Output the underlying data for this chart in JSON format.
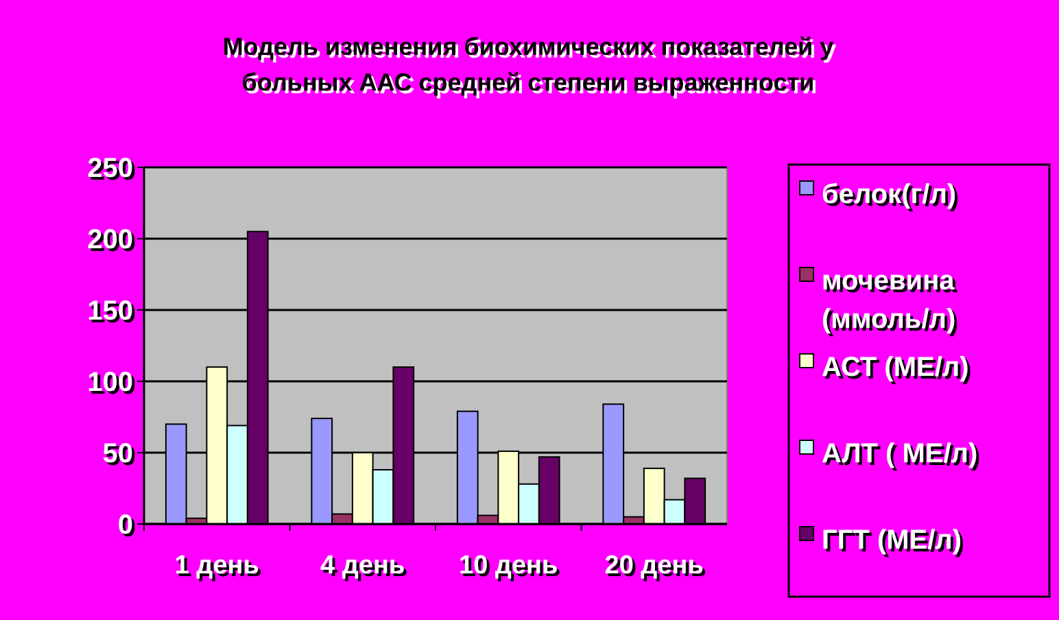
{
  "chart_data": {
    "type": "bar",
    "title": "Модель изменения биохимических показателей у больных ААС средней степени выраженности",
    "categories": [
      "1 день",
      "4 день",
      "10 день",
      "20 день"
    ],
    "series": [
      {
        "name": "белок(г/л)",
        "color": "#9999ff",
        "values": [
          70,
          74,
          79,
          84
        ]
      },
      {
        "name": "мочевина (ммоль/л)",
        "color": "#993366",
        "values": [
          4,
          7,
          6,
          5
        ]
      },
      {
        "name": "АСТ (МЕ/л)",
        "color": "#ffffcc",
        "values": [
          110,
          50,
          51,
          39
        ]
      },
      {
        "name": "АЛТ ( МЕ/л)",
        "color": "#ccffff",
        "values": [
          69,
          38,
          28,
          17
        ]
      },
      {
        "name": "ГГТ (МЕ/л)",
        "color": "#660066",
        "values": [
          205,
          110,
          47,
          32
        ]
      }
    ],
    "ylim": [
      0,
      250
    ],
    "yticks": [
      0,
      50,
      100,
      150,
      200,
      250
    ],
    "grid": "y",
    "legend": "right"
  }
}
